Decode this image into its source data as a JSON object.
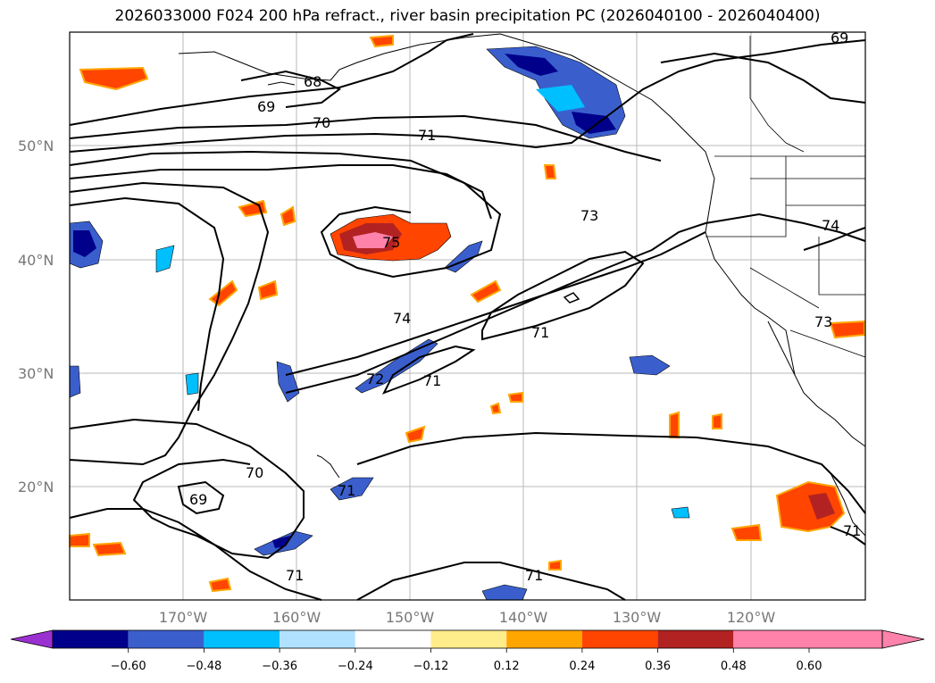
{
  "title": "2026033000 F024 200 hPa refract., river basin precipitation PC (2026040100 - 2026040400)",
  "lat_labels": [
    "50°N",
    "40°N",
    "30°N",
    "20°N"
  ],
  "lon_labels": [
    "170°W",
    "160°W",
    "150°W",
    "140°W",
    "130°W",
    "120°W"
  ],
  "contour_labels": [
    "68",
    "69",
    "70",
    "71",
    "73",
    "74",
    "75",
    "73",
    "74",
    "71",
    "72",
    "71",
    "70",
    "69",
    "71",
    "71",
    "71",
    "69",
    "71"
  ],
  "colorbar": {
    "ticks": [
      "−0.60",
      "−0.48",
      "−0.36",
      "−0.24",
      "−0.12",
      "0.12",
      "0.24",
      "0.36",
      "0.48",
      "0.60"
    ],
    "colors": [
      "#9b30d0",
      "#00008b",
      "#3a5fcd",
      "#00bfff",
      "#b0e2ff",
      "#ffffff",
      "#ffec8b",
      "#ffa500",
      "#ff4500",
      "#b22222",
      "#ff82ab"
    ]
  },
  "colors": {
    "neg_deep": "#00008b",
    "neg_mid": "#3a5fcd",
    "neg_light": "#00bfff",
    "neg_pale": "#b0e2ff",
    "pos_pale": "#ffec8b",
    "pos_mid": "#ffa500",
    "pos_strong": "#ff4500",
    "pos_deep": "#b22222",
    "pos_max": "#ff82ab"
  }
}
